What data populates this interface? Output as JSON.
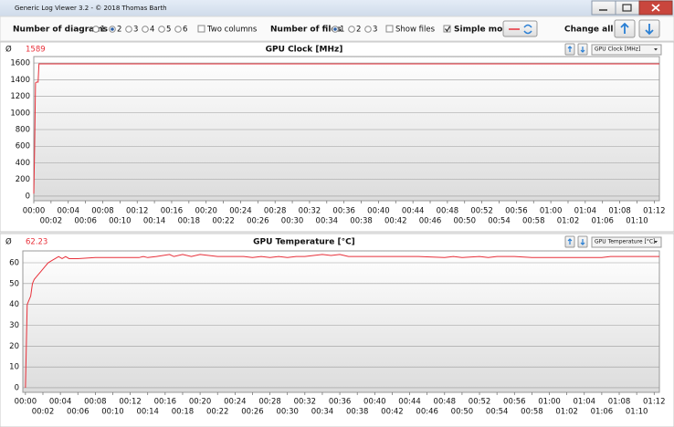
{
  "window": {
    "title": "Generic Log Viewer 3.2 - © 2018 Thomas Barth"
  },
  "toolbar": {
    "diagrams_label": "Number of diagrams",
    "diagram_options": [
      "1",
      "2",
      "3",
      "4",
      "5",
      "6"
    ],
    "two_columns": "Two columns",
    "files_label": "Number of files",
    "file_options": [
      "1",
      "2",
      "3"
    ],
    "show_files": "Show files",
    "simple_mode": "Simple mode",
    "change_all": "Change all"
  },
  "chart_data": [
    {
      "type": "line",
      "title": "GPU Clock [MHz]",
      "average_symbol": "Ø",
      "average": 1589,
      "selector": "GPU Clock [MHz]",
      "x": [
        0,
        0.1,
        0.2,
        0.3,
        0.5,
        0.6,
        0.7,
        72.6
      ],
      "series": [
        {
          "color": "#e8303a",
          "values": [
            30,
            600,
            1360,
            1370,
            1370,
            1590,
            1590,
            1590
          ]
        }
      ],
      "xlim": [
        0,
        72.6
      ],
      "ylim": [
        -55,
        1677
      ],
      "yticks": [
        0,
        200,
        400,
        600,
        800,
        1000,
        1200,
        1400,
        1600
      ],
      "xticks": [
        {
          "value": 0,
          "label": "00:00"
        },
        {
          "value": 2,
          "label": "00:02"
        },
        {
          "value": 4,
          "label": "00:04"
        },
        {
          "value": 6,
          "label": "00:06"
        },
        {
          "value": 8,
          "label": "00:08"
        },
        {
          "value": 10,
          "label": "00:10"
        },
        {
          "value": 12,
          "label": "00:12"
        },
        {
          "value": 14,
          "label": "00:14"
        },
        {
          "value": 16,
          "label": "00:16"
        },
        {
          "value": 18,
          "label": "00:18"
        },
        {
          "value": 20,
          "label": "00:20"
        },
        {
          "value": 22,
          "label": "00:22"
        },
        {
          "value": 24,
          "label": "00:24"
        },
        {
          "value": 26,
          "label": "00:26"
        },
        {
          "value": 28,
          "label": "00:28"
        },
        {
          "value": 30,
          "label": "00:30"
        },
        {
          "value": 32,
          "label": "00:32"
        },
        {
          "value": 34,
          "label": "00:34"
        },
        {
          "value": 36,
          "label": "00:36"
        },
        {
          "value": 38,
          "label": "00:38"
        },
        {
          "value": 40,
          "label": "00:40"
        },
        {
          "value": 42,
          "label": "00:42"
        },
        {
          "value": 44,
          "label": "00:44"
        },
        {
          "value": 46,
          "label": "00:46"
        },
        {
          "value": 48,
          "label": "00:48"
        },
        {
          "value": 50,
          "label": "00:50"
        },
        {
          "value": 52,
          "label": "00:52"
        },
        {
          "value": 54,
          "label": "00:54"
        },
        {
          "value": 56,
          "label": "00:56"
        },
        {
          "value": 58,
          "label": "00:58"
        },
        {
          "value": 60,
          "label": "01:00"
        },
        {
          "value": 62,
          "label": "01:02"
        },
        {
          "value": 64,
          "label": "01:04"
        },
        {
          "value": 66,
          "label": "01:06"
        },
        {
          "value": 68,
          "label": "01:08"
        },
        {
          "value": 70,
          "label": "01:10"
        },
        {
          "value": 72,
          "label": "01:12"
        }
      ],
      "grid": true
    },
    {
      "type": "line",
      "title": "GPU Temperature [°C]",
      "average_symbol": "Ø",
      "average": 62.23,
      "selector": "GPU Temperature [°C]",
      "x": [
        0,
        0.1,
        0.2,
        0.4,
        0.6,
        0.8,
        1.0,
        1.4,
        1.8,
        2.2,
        2.6,
        3.0,
        3.4,
        3.8,
        4.2,
        4.6,
        5.0,
        6,
        8,
        10,
        13,
        13.5,
        14,
        15,
        16.5,
        17,
        18,
        19,
        20,
        22,
        25,
        26,
        27,
        28,
        29,
        30,
        31,
        32,
        33,
        34,
        35,
        36,
        37,
        40,
        45,
        48,
        49,
        50,
        52,
        53,
        54,
        56,
        58,
        60,
        62,
        63,
        66,
        67,
        72.6
      ],
      "series": [
        {
          "color": "#e8303a",
          "values": [
            0,
            20,
            40,
            42,
            44,
            50,
            52,
            54,
            56,
            58,
            60,
            61,
            62,
            63,
            62,
            63,
            62,
            62,
            62.5,
            62.5,
            62.5,
            63,
            62.5,
            63,
            64,
            63,
            64,
            63,
            64,
            63,
            63,
            62.5,
            63,
            62.5,
            63,
            62.5,
            63,
            63,
            63.5,
            64,
            63.5,
            64,
            63,
            63,
            63,
            62.5,
            63,
            62.5,
            63,
            62.5,
            63,
            63,
            62.5,
            62.5,
            62.5,
            62.5,
            62.5,
            63,
            63
          ]
        }
      ],
      "xlim": [
        -0.3,
        72.6
      ],
      "ylim": [
        -2.2,
        65.7
      ],
      "yticks": [
        0,
        10,
        20,
        30,
        40,
        50,
        60
      ],
      "xticks": [
        {
          "value": 0,
          "label": "00:00"
        },
        {
          "value": 2,
          "label": "00:02"
        },
        {
          "value": 4,
          "label": "00:04"
        },
        {
          "value": 6,
          "label": "00:06"
        },
        {
          "value": 8,
          "label": "00:08"
        },
        {
          "value": 10,
          "label": "00:10"
        },
        {
          "value": 12,
          "label": "00:12"
        },
        {
          "value": 14,
          "label": "00:14"
        },
        {
          "value": 16,
          "label": "00:16"
        },
        {
          "value": 18,
          "label": "00:18"
        },
        {
          "value": 20,
          "label": "00:20"
        },
        {
          "value": 22,
          "label": "00:22"
        },
        {
          "value": 24,
          "label": "00:24"
        },
        {
          "value": 26,
          "label": "00:26"
        },
        {
          "value": 28,
          "label": "00:28"
        },
        {
          "value": 30,
          "label": "00:30"
        },
        {
          "value": 32,
          "label": "00:32"
        },
        {
          "value": 34,
          "label": "00:34"
        },
        {
          "value": 36,
          "label": "00:36"
        },
        {
          "value": 38,
          "label": "00:38"
        },
        {
          "value": 40,
          "label": "00:40"
        },
        {
          "value": 42,
          "label": "00:42"
        },
        {
          "value": 44,
          "label": "00:44"
        },
        {
          "value": 46,
          "label": "00:46"
        },
        {
          "value": 48,
          "label": "00:48"
        },
        {
          "value": 50,
          "label": "00:50"
        },
        {
          "value": 52,
          "label": "00:52"
        },
        {
          "value": 54,
          "label": "00:54"
        },
        {
          "value": 56,
          "label": "00:56"
        },
        {
          "value": 58,
          "label": "00:58"
        },
        {
          "value": 60,
          "label": "01:00"
        },
        {
          "value": 62,
          "label": "01:02"
        },
        {
          "value": 64,
          "label": "01:04"
        },
        {
          "value": 66,
          "label": "01:06"
        },
        {
          "value": 68,
          "label": "01:08"
        },
        {
          "value": 70,
          "label": "01:10"
        },
        {
          "value": 72,
          "label": "01:12"
        }
      ],
      "grid": true
    }
  ]
}
